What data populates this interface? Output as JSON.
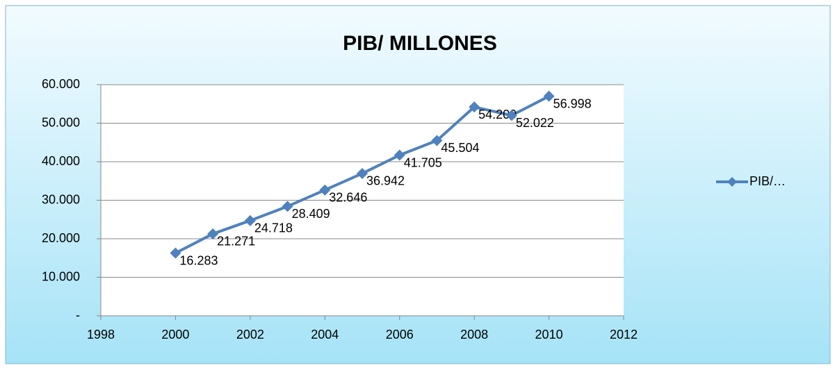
{
  "chart_data": {
    "type": "line",
    "title": "PIB/ MILLONES",
    "x": [
      2000,
      2001,
      2002,
      2003,
      2004,
      2005,
      2006,
      2007,
      2008,
      2009,
      2010
    ],
    "series": [
      {
        "name": "PIB/…",
        "color": "#4f81bd",
        "values": [
          16283,
          21271,
          24718,
          28409,
          32646,
          36942,
          41705,
          45504,
          54209,
          52022,
          56998
        ],
        "value_labels": [
          "16.283",
          "21.271",
          "24.718",
          "28.409",
          "32.646",
          "36.942",
          "41.705",
          "45.504",
          "54.209",
          "52.022",
          "56.998"
        ]
      }
    ],
    "xlim": [
      1998,
      2012
    ],
    "xticks": [
      1998,
      2000,
      2002,
      2004,
      2006,
      2008,
      2010,
      2012
    ],
    "ylim": [
      0,
      60000
    ],
    "yticks": [
      {
        "value": 0,
        "label": "-"
      },
      {
        "value": 10000,
        "label": "10.000"
      },
      {
        "value": 20000,
        "label": "20.000"
      },
      {
        "value": 30000,
        "label": "30.000"
      },
      {
        "value": 40000,
        "label": "40.000"
      },
      {
        "value": 50000,
        "label": "50.000"
      },
      {
        "value": 60000,
        "label": "60.000"
      }
    ],
    "grid": true,
    "legend": "right"
  }
}
